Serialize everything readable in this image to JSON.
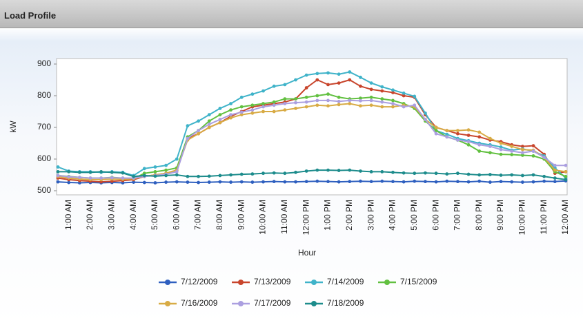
{
  "header": {
    "title": "Load Profile"
  },
  "chart_data": {
    "type": "line",
    "y_label": "kW",
    "x_label": "Hour",
    "categories": [
      null,
      "1:00 AM",
      null,
      "2:00 AM",
      null,
      "3:00 AM",
      null,
      "4:00 AM",
      null,
      "5:00 AM",
      null,
      "6:00 AM",
      null,
      "7:00 AM",
      null,
      "8:00 AM",
      null,
      "9:00 AM",
      null,
      "10:00 AM",
      null,
      "11:00 AM",
      null,
      "12:00 PM",
      null,
      "1:00 PM",
      null,
      "2:00 PM",
      null,
      "3:00 PM",
      null,
      "4:00 PM",
      null,
      "5:00 PM",
      null,
      "6:00 PM",
      null,
      "7:00 PM",
      null,
      "8:00 PM",
      null,
      "9:00 PM",
      null,
      "10:00 PM",
      null,
      "11:00 PM",
      null,
      "12:00 AM"
    ],
    "ylim": [
      500,
      900
    ],
    "yticks": [
      500,
      600,
      700,
      800,
      900
    ],
    "grid": false,
    "legend": "bottom",
    "series": [
      {
        "name": "7/12/2009",
        "color": "#2e5fbf",
        "values": [
          528,
          526,
          525,
          526,
          525,
          526,
          525,
          527,
          526,
          525,
          527,
          528,
          527,
          526,
          527,
          528,
          527,
          528,
          527,
          528,
          529,
          528,
          528,
          529,
          530,
          529,
          528,
          529,
          530,
          529,
          530,
          529,
          528,
          530,
          529,
          528,
          530,
          529,
          528,
          530,
          527,
          529,
          528,
          527,
          528,
          530,
          529,
          531
        ]
      },
      {
        "name": "7/13/2009",
        "color": "#c8452c",
        "values": [
          540,
          535,
          532,
          530,
          528,
          530,
          532,
          535,
          545,
          550,
          555,
          565,
          665,
          680,
          700,
          715,
          735,
          750,
          765,
          770,
          775,
          780,
          790,
          825,
          850,
          835,
          840,
          850,
          830,
          820,
          815,
          810,
          800,
          795,
          740,
          700,
          690,
          680,
          675,
          670,
          660,
          655,
          645,
          640,
          642,
          615,
          555,
          560
        ]
      },
      {
        "name": "7/14/2009",
        "color": "#3fb3c9",
        "values": [
          575,
          562,
          560,
          560,
          558,
          560,
          558,
          548,
          570,
          575,
          580,
          600,
          705,
          720,
          740,
          760,
          775,
          795,
          805,
          815,
          830,
          835,
          850,
          865,
          870,
          872,
          868,
          875,
          858,
          840,
          828,
          818,
          808,
          798,
          745,
          690,
          678,
          665,
          658,
          650,
          645,
          638,
          628,
          632,
          625,
          610,
          572,
          540
        ]
      },
      {
        "name": "7/15/2009",
        "color": "#62c040",
        "values": [
          548,
          545,
          542,
          540,
          540,
          542,
          540,
          538,
          555,
          560,
          565,
          572,
          670,
          690,
          720,
          740,
          755,
          765,
          770,
          775,
          780,
          790,
          790,
          795,
          800,
          805,
          795,
          790,
          792,
          795,
          790,
          785,
          775,
          760,
          720,
          690,
          670,
          660,
          645,
          625,
          620,
          615,
          614,
          612,
          610,
          600,
          560,
          545
        ]
      },
      {
        "name": "7/16/2009",
        "color": "#d8ab45",
        "values": [
          545,
          540,
          537,
          535,
          535,
          537,
          536,
          538,
          545,
          550,
          555,
          565,
          660,
          680,
          700,
          715,
          730,
          740,
          745,
          750,
          750,
          755,
          760,
          765,
          770,
          768,
          772,
          775,
          768,
          770,
          765,
          765,
          770,
          765,
          725,
          700,
          690,
          690,
          692,
          685,
          665,
          650,
          640,
          630,
          628,
          605,
          565,
          560
        ]
      },
      {
        "name": "7/17/2009",
        "color": "#ab9fe0",
        "values": [
          548,
          544,
          542,
          540,
          540,
          541,
          540,
          540,
          545,
          548,
          552,
          560,
          665,
          690,
          710,
          725,
          740,
          748,
          755,
          765,
          770,
          775,
          778,
          780,
          785,
          785,
          782,
          785,
          784,
          785,
          780,
          775,
          765,
          770,
          725,
          680,
          670,
          660,
          655,
          645,
          640,
          630,
          625,
          620,
          625,
          605,
          580,
          580
        ]
      },
      {
        "name": "7/18/2009",
        "color": "#1d8c8c",
        "values": [
          560,
          560,
          558,
          558,
          560,
          558,
          556,
          545,
          548,
          546,
          548,
          550,
          545,
          545,
          546,
          548,
          550,
          552,
          553,
          555,
          556,
          555,
          558,
          562,
          565,
          565,
          564,
          565,
          562,
          560,
          560,
          558,
          556,
          555,
          556,
          555,
          553,
          555,
          552,
          550,
          551,
          549,
          550,
          548,
          550,
          545,
          540,
          535
        ]
      }
    ]
  }
}
